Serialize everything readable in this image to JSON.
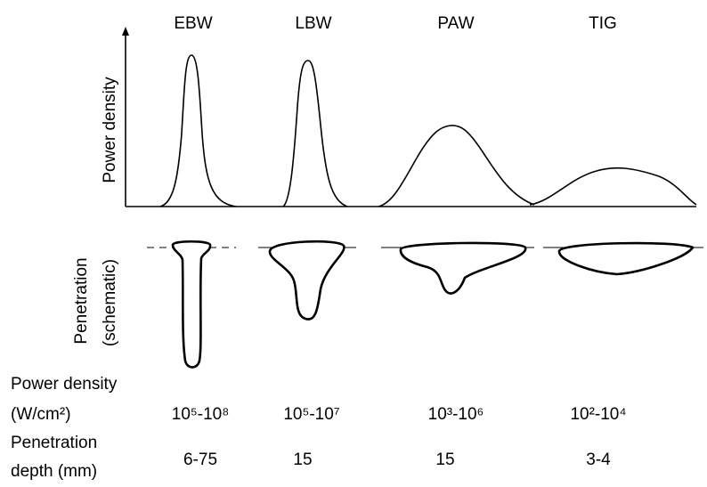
{
  "processes": [
    {
      "name": "EBW",
      "power_density": "10⁵-10⁸",
      "penetration_depth": "6-75"
    },
    {
      "name": "LBW",
      "power_density": "10⁵-10⁷",
      "penetration_depth": "15"
    },
    {
      "name": "PAW",
      "power_density": "10³-10⁶",
      "penetration_depth": "15"
    },
    {
      "name": "TIG",
      "power_density": "10²-10⁴",
      "penetration_depth": "3-4"
    }
  ],
  "y_axis_label": "Power density",
  "penetration_label": [
    "Penetration",
    "(schematic)"
  ],
  "row_labels": {
    "power_density": [
      "Power density",
      "(W/cm²)"
    ],
    "penetration_depth": [
      "Penetration",
      "depth (mm)"
    ]
  }
}
